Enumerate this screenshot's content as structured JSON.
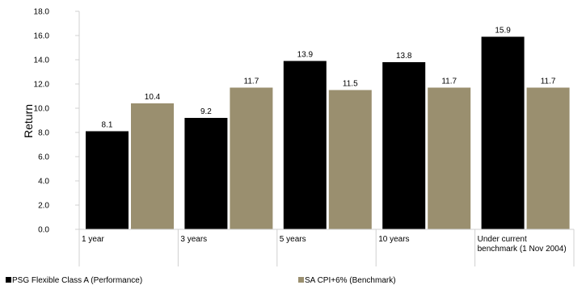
{
  "chart_data": {
    "type": "bar",
    "title": "",
    "xlabel": "",
    "ylabel": "Return",
    "ylim": [
      0,
      18
    ],
    "yticks": [
      "0.0",
      "2.0",
      "4.0",
      "6.0",
      "8.0",
      "10.0",
      "12.0",
      "14.0",
      "16.0",
      "18.0"
    ],
    "categories": [
      [
        "1 year"
      ],
      [
        "3 years"
      ],
      [
        "5 years"
      ],
      [
        "10 years"
      ],
      [
        "Under current",
        "benchmark (1 Nov 2004)"
      ]
    ],
    "series": [
      {
        "name": "PSG Flexible Class A (Performance)",
        "color": "#000000",
        "values": [
          8.1,
          9.2,
          13.9,
          13.8,
          15.9
        ],
        "labels": [
          "8.1",
          "9.2",
          "13.9",
          "13.8",
          "15.9"
        ]
      },
      {
        "name": "SA CPI+6% (Benchmark)",
        "color": "#9a8f6f",
        "values": [
          10.4,
          11.7,
          11.5,
          11.7,
          11.7
        ],
        "labels": [
          "10.4",
          "11.7",
          "11.5",
          "11.7",
          "11.7"
        ]
      }
    ],
    "grid": false,
    "legend_position": "bottom"
  }
}
